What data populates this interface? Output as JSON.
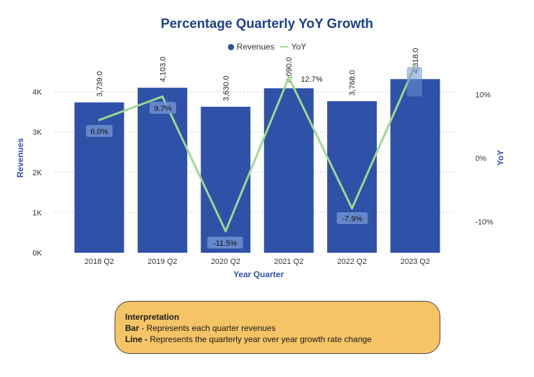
{
  "chart_data": {
    "type": "bar+line",
    "title": "Percentage Quarterly YoY Growth",
    "xlabel": "Year Quarter",
    "ylabel": "Revenues",
    "y2label": "YoY",
    "categories": [
      "2018 Q2",
      "2019 Q2",
      "2020 Q2",
      "2021 Q2",
      "2022 Q2",
      "2023 Q2"
    ],
    "series": [
      {
        "name": "Revenues",
        "type": "bar",
        "axis": "left",
        "values": [
          3739.0,
          4103.0,
          3630.0,
          4090.0,
          3768.0,
          4318.0
        ],
        "labels": [
          "3,739.0",
          "4,103.0",
          "3,630.0",
          "4,090.0",
          "3,768.0",
          "4,318.0"
        ],
        "color": "#2f52a8"
      },
      {
        "name": "YoY",
        "type": "line",
        "axis": "right",
        "values": [
          6.0,
          9.7,
          -11.5,
          12.7,
          -7.9,
          14.6
        ],
        "labels": [
          "6.0%",
          "9.7%",
          "-11.5%",
          "12.7%",
          "-7.9%",
          ""
        ],
        "color": "#9fd88e"
      }
    ],
    "ylim": [
      0,
      4400
    ],
    "yticks": [
      0,
      1000,
      2000,
      3000,
      4000
    ],
    "ytick_labels": [
      "0K",
      "1K",
      "2K",
      "3K",
      "4K"
    ],
    "y2lim": [
      -15,
      15
    ],
    "y2ticks": [
      -10,
      0,
      10
    ],
    "y2tick_labels": [
      "-10%",
      "0%",
      "10%"
    ],
    "grid": true,
    "legend": "top-center"
  },
  "interpretation": {
    "title": "Interpretation",
    "bar_key": "Bar",
    "bar_text": " - Represents each quarter revenues",
    "line_key": "Line -",
    "line_text": " Represents the quarterly year over year growth rate change"
  }
}
